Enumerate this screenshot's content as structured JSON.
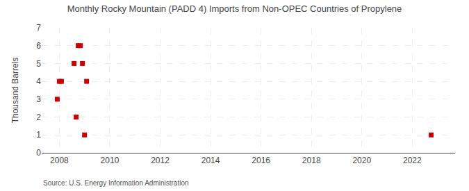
{
  "chart_data": {
    "type": "scatter",
    "title": "Monthly Rocky Mountain (PADD 4) Imports from Non-OPEC Countries of Propylene",
    "y_label": "Thousand Barrels",
    "annotations": [
      "Source: U.S. Energy Information Administration"
    ],
    "x": [
      2007.917,
      2008.0,
      2008.083,
      2008.583,
      2008.667,
      2008.75,
      2008.833,
      2008.917,
      2009.0,
      2009.083,
      2022.75
    ],
    "values": [
      3,
      4,
      4,
      5,
      2,
      6,
      6,
      5,
      1,
      4,
      1
    ],
    "color": "#cc0000",
    "marker": "square",
    "xlim": [
      2007.3,
      2023.7
    ],
    "ylim": [
      0,
      7
    ],
    "xticks": [
      2008,
      2010,
      2012,
      2014,
      2016,
      2018,
      2020,
      2022
    ],
    "yticks": [
      0,
      1,
      2,
      3,
      4,
      5,
      6,
      7
    ],
    "grid": true
  }
}
